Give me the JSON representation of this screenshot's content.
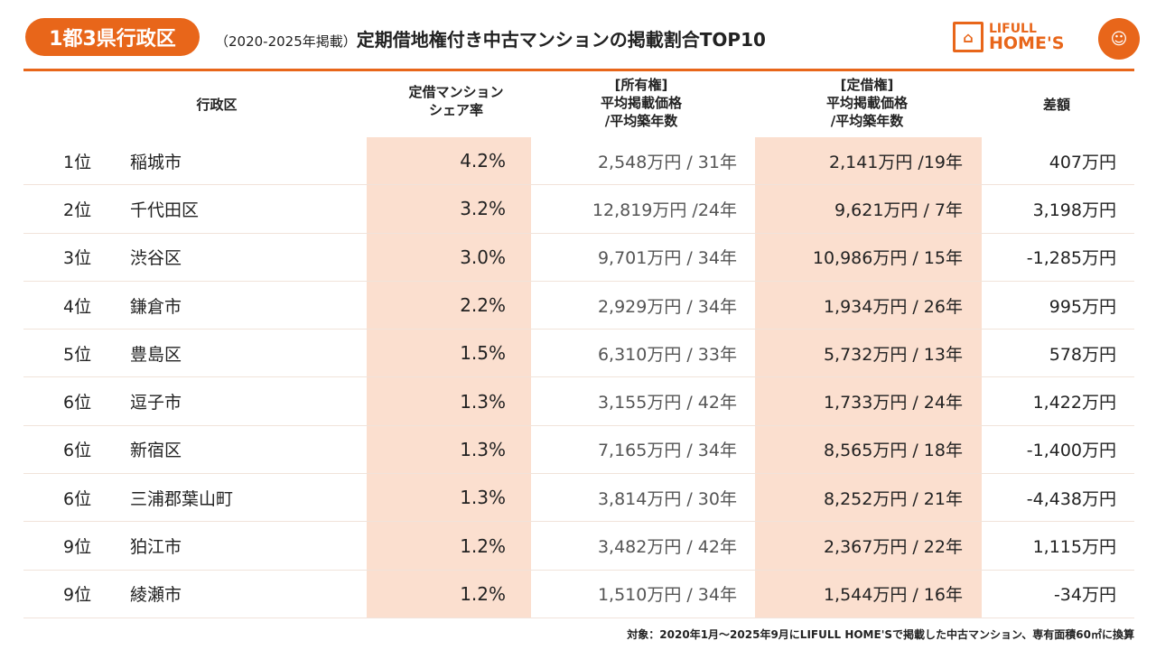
{
  "header": {
    "badge": "1都3県行政区",
    "subtitle": "（2020-2025年掲載）",
    "title": "定期借地権付き中古マンションの掲載割合TOP10",
    "logo_line1": "LIFULL",
    "logo_line2": "HOME'S",
    "accent": "#e8661a",
    "shade": "#fbdfcf"
  },
  "columns": {
    "area": "行政区",
    "share": "定借マンション\nシェア率",
    "own": "[所有権]\n平均掲載価格\n/平均築年数",
    "lease": "[定借権]\n平均掲載価格\n/平均築年数",
    "diff": "差額"
  },
  "rows": [
    {
      "rank": "1位",
      "name": "稲城市",
      "share": "4.2%",
      "own": "2,548万円 / 31年",
      "lease": "2,141万円 /19年",
      "diff": "407万円"
    },
    {
      "rank": "2位",
      "name": "千代田区",
      "share": "3.2%",
      "own": "12,819万円 /24年",
      "lease": "9,621万円 / 7年",
      "diff": "3,198万円"
    },
    {
      "rank": "3位",
      "name": "渋谷区",
      "share": "3.0%",
      "own": "9,701万円 / 34年",
      "lease": "10,986万円 / 15年",
      "diff": "-1,285万円"
    },
    {
      "rank": "4位",
      "name": "鎌倉市",
      "share": "2.2%",
      "own": "2,929万円 / 34年",
      "lease": "1,934万円 / 26年",
      "diff": "995万円"
    },
    {
      "rank": "5位",
      "name": "豊島区",
      "share": "1.5%",
      "own": "6,310万円 / 33年",
      "lease": "5,732万円 / 13年",
      "diff": "578万円"
    },
    {
      "rank": "6位",
      "name": "逗子市",
      "share": "1.3%",
      "own": "3,155万円 / 42年",
      "lease": "1,733万円 / 24年",
      "diff": "1,422万円"
    },
    {
      "rank": "6位",
      "name": "新宿区",
      "share": "1.3%",
      "own": "7,165万円 / 34年",
      "lease": "8,565万円 / 18年",
      "diff": "-1,400万円"
    },
    {
      "rank": "6位",
      "name": "三浦郡葉山町",
      "share": "1.3%",
      "own": "3,814万円 / 30年",
      "lease": "8,252万円 / 21年",
      "diff": "-4,438万円"
    },
    {
      "rank": "9位",
      "name": "狛江市",
      "share": "1.2%",
      "own": "3,482万円 / 42年",
      "lease": "2,367万円 / 22年",
      "diff": "1,115万円"
    },
    {
      "rank": "9位",
      "name": "綾瀬市",
      "share": "1.2%",
      "own": "1,510万円 / 34年",
      "lease": "1,544万円 / 16年",
      "diff": "-34万円"
    }
  ],
  "footnote": "対象：2020年1月～2025年9月にLIFULL HOME'Sで掲載した中古マンション、専有面積60㎡に換算"
}
